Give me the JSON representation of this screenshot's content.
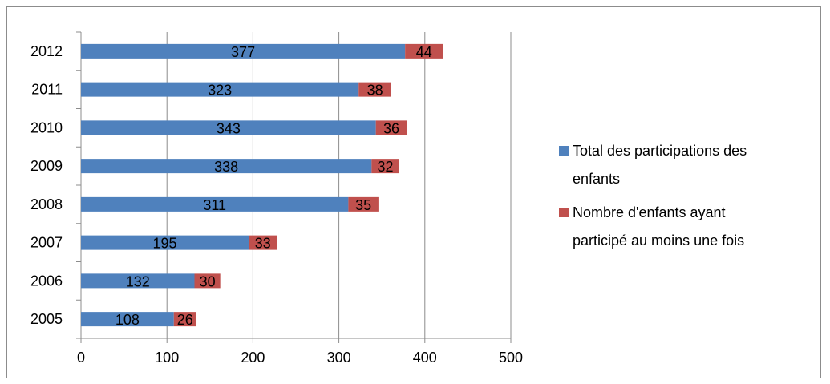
{
  "chart_data": {
    "type": "bar",
    "orientation": "horizontal",
    "stacked": true,
    "categories": [
      "2005",
      "2006",
      "2007",
      "2008",
      "2009",
      "2010",
      "2011",
      "2012"
    ],
    "series": [
      {
        "name": "Total des participations des enfants",
        "color": "#4F81BD",
        "values": [
          108,
          132,
          195,
          311,
          338,
          343,
          323,
          377
        ]
      },
      {
        "name": "Nombre d'enfants ayant participé au moins une fois",
        "color": "#C0504D",
        "values": [
          26,
          30,
          33,
          35,
          32,
          36,
          38,
          44
        ]
      }
    ],
    "xlim": [
      0,
      500
    ],
    "xticks": [
      0,
      100,
      200,
      300,
      400,
      500
    ],
    "grid": "vertical",
    "legend_position": "right",
    "legend_lines": [
      [
        "Total des participations des",
        "enfants"
      ],
      [
        "Nombre d'enfants ayant",
        "participé au moins une fois"
      ]
    ],
    "title": "",
    "xlabel": "",
    "ylabel": ""
  }
}
